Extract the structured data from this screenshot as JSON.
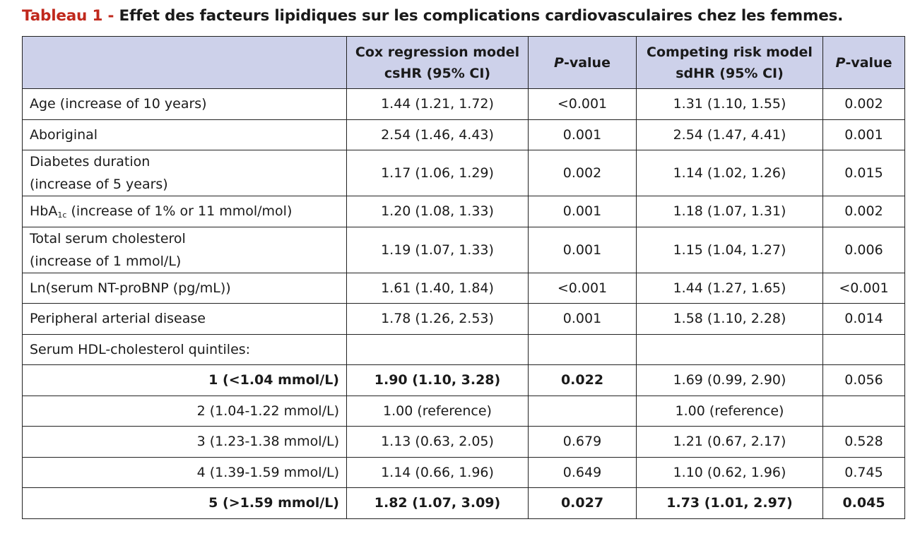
{
  "title": {
    "label": "Tableau 1 -",
    "text": "Effet des facteurs lipidiques sur les complications cardiovasculaires chez les femmes."
  },
  "header": {
    "col1": "",
    "col2_line1": "Cox regression model",
    "col2_line2": "csHR (95% CI)",
    "col3_p": "P",
    "col3_rest": "-value",
    "col4_line1": "Competing risk model",
    "col4_line2": "sdHR (95% CI)",
    "col5_p": "P",
    "col5_rest": "-value"
  },
  "rows": [
    {
      "label": "Age (increase of 10 years)",
      "cox": "1.44 (1.21, 1.72)",
      "p1": "<0.001",
      "comp": "1.31 (1.10, 1.55)",
      "p2": "0.002"
    },
    {
      "label": "Aboriginal",
      "cox": "2.54 (1.46, 4.43)",
      "p1": "0.001",
      "comp": "2.54 (1.47, 4.41)",
      "p2": "0.001"
    },
    {
      "label_line1": "Diabetes duration",
      "label_line2": "(increase of 5 years)",
      "cox": "1.17 (1.06, 1.29)",
      "p1": "0.002",
      "comp": "1.14 (1.02, 1.26)",
      "p2": "0.015"
    },
    {
      "label_a": "HbA",
      "label_sub": "1c",
      "label_b": " (increase of 1% or 11 mmol/mol)",
      "cox": "1.20 (1.08, 1.33)",
      "p1": "0.001",
      "comp": "1.18 (1.07, 1.31)",
      "p2": "0.002"
    },
    {
      "label_line1": "Total serum cholesterol",
      "label_line2": "(increase of 1 mmol/L)",
      "cox": "1.19 (1.07, 1.33)",
      "p1": "0.001",
      "comp": "1.15 (1.04, 1.27)",
      "p2": "0.006"
    },
    {
      "label": "Ln(serum NT-proBNP (pg/mL))",
      "cox": "1.61 (1.40, 1.84)",
      "p1": "<0.001",
      "comp": "1.44 (1.27, 1.65)",
      "p2": "<0.001"
    },
    {
      "label": "Peripheral arterial disease",
      "cox": "1.78 (1.26, 2.53)",
      "p1": "0.001",
      "comp": "1.58 (1.10, 2.28)",
      "p2": "0.014"
    },
    {
      "label": "Serum HDL-cholesterol quintiles:",
      "cox": "",
      "p1": "",
      "comp": "",
      "p2": ""
    },
    {
      "label": "1 (<1.04 mmol/L)",
      "cox": "1.90 (1.10, 3.28)",
      "p1": "0.022",
      "comp": "1.69 (0.99, 2.90)",
      "p2": "0.056"
    },
    {
      "label": "2 (1.04-1.22 mmol/L)",
      "cox": "1.00 (reference)",
      "p1": "",
      "comp": "1.00 (reference)",
      "p2": ""
    },
    {
      "label": "3 (1.23-1.38 mmol/L)",
      "cox": "1.13 (0.63, 2.05)",
      "p1": "0.679",
      "comp": "1.21 (0.67, 2.17)",
      "p2": "0.528"
    },
    {
      "label": "4 (1.39-1.59 mmol/L)",
      "cox": "1.14 (0.66, 1.96)",
      "p1": "0.649",
      "comp": "1.10 (0.62, 1.96)",
      "p2": "0.745"
    },
    {
      "label": "5 (>1.59 mmol/L)",
      "cox": "1.82 (1.07, 3.09)",
      "p1": "0.027",
      "comp": "1.73 (1.01, 2.97)",
      "p2": "0.045"
    }
  ]
}
